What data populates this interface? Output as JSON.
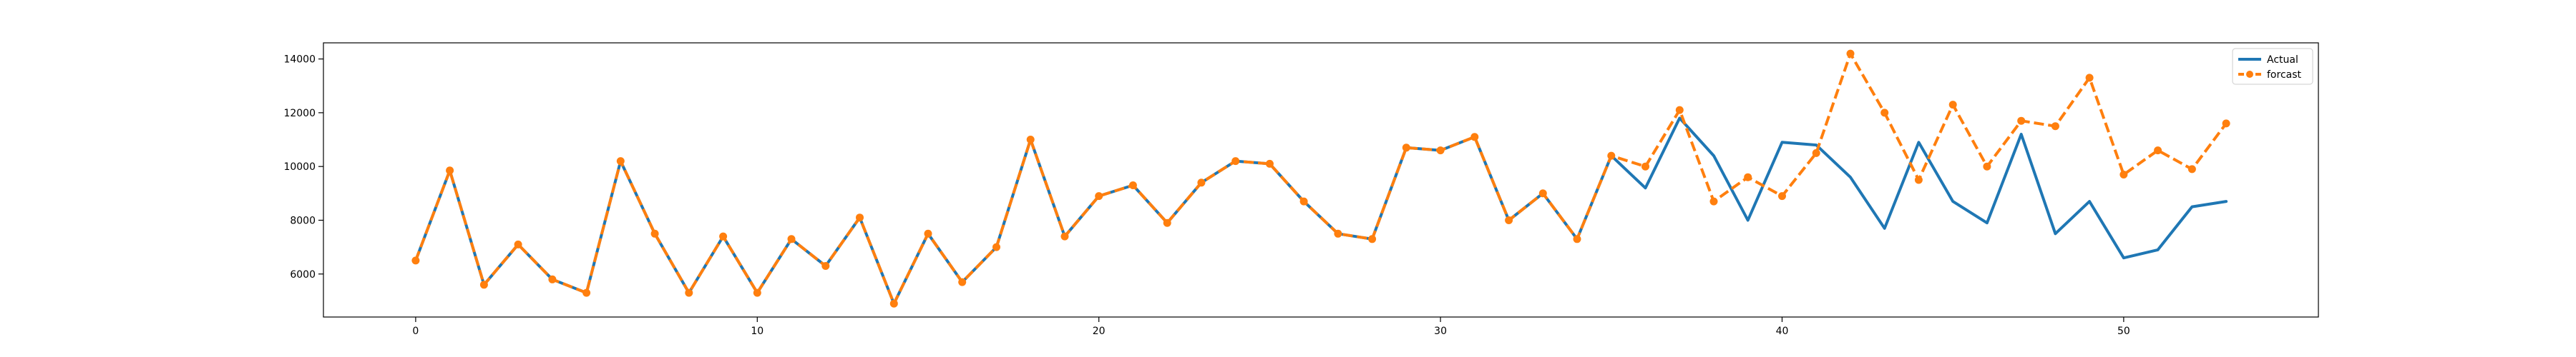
{
  "chart_data": {
    "type": "line",
    "title": "",
    "xlabel": "",
    "ylabel": "",
    "x": [
      0,
      1,
      2,
      3,
      4,
      5,
      6,
      7,
      8,
      9,
      10,
      11,
      12,
      13,
      14,
      15,
      16,
      17,
      18,
      19,
      20,
      21,
      22,
      23,
      24,
      25,
      26,
      27,
      28,
      29,
      30,
      31,
      32,
      33,
      34,
      35,
      36,
      37,
      38,
      39,
      40,
      41,
      42,
      43,
      44,
      45,
      46,
      47,
      48,
      49,
      50,
      51,
      52,
      53
    ],
    "xlim": [
      -2.7,
      55.7
    ],
    "ylim": [
      4400,
      14600
    ],
    "xticks": [
      0,
      10,
      20,
      30,
      40,
      50
    ],
    "yticks": [
      6000,
      8000,
      10000,
      12000,
      14000
    ],
    "grid": false,
    "legend_position": "top-right",
    "series": [
      {
        "name": "Actual",
        "color": "#1f77b4",
        "style": "solid",
        "marker": "none",
        "values": [
          6500,
          9850,
          5600,
          7100,
          5800,
          5300,
          10200,
          7500,
          5300,
          7400,
          5300,
          7300,
          6300,
          8100,
          4900,
          7500,
          5700,
          7000,
          11000,
          7400,
          8900,
          9300,
          7900,
          9400,
          10200,
          10100,
          8700,
          7500,
          7300,
          10700,
          10600,
          11100,
          8000,
          9000,
          7300,
          10400,
          9200,
          11800,
          10400,
          8000,
          10900,
          10800,
          9600,
          7700,
          10900,
          8700,
          7900,
          11200,
          7500,
          8700,
          6600,
          6900,
          8500,
          8700
        ]
      },
      {
        "name": "forcast",
        "color": "#ff7f0e",
        "style": "dashed",
        "marker": "circle",
        "values": [
          6500,
          9850,
          5600,
          7100,
          5800,
          5300,
          10200,
          7500,
          5300,
          7400,
          5300,
          7300,
          6300,
          8100,
          4900,
          7500,
          5700,
          7000,
          11000,
          7400,
          8900,
          9300,
          7900,
          9400,
          10200,
          10100,
          8700,
          7500,
          7300,
          10700,
          10600,
          11100,
          8000,
          9000,
          7300,
          10400,
          10000,
          12100,
          8700,
          9600,
          8900,
          10500,
          14200,
          12000,
          9500,
          12300,
          10000,
          11700,
          11500,
          13300,
          9700,
          10600,
          9900,
          11600
        ]
      }
    ]
  }
}
